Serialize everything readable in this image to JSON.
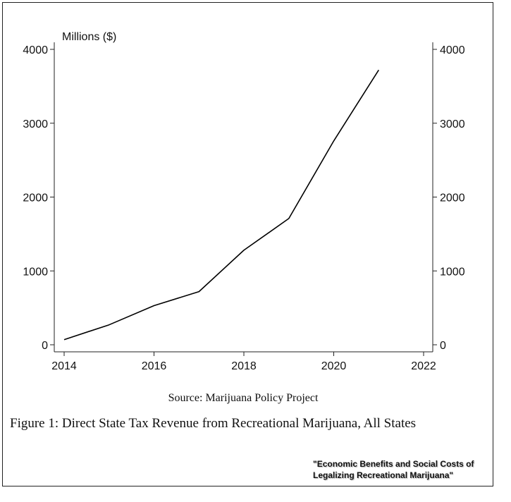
{
  "chart_data": {
    "type": "line",
    "title": "",
    "xlabel": "",
    "ylabel": "Millions ($)",
    "xlim": [
      2014,
      2022
    ],
    "ylim": [
      0,
      4000
    ],
    "xticks": [
      2014,
      2016,
      2018,
      2020,
      2022
    ],
    "yticks": [
      0,
      1000,
      2000,
      3000,
      4000
    ],
    "grid": false,
    "series": [
      {
        "x": [
          2014,
          2015,
          2016,
          2017,
          2018,
          2019,
          2020,
          2021
        ],
        "y": [
          70,
          270,
          530,
          720,
          1280,
          1710,
          2760,
          3720
        ]
      }
    ],
    "line_color": "#000000"
  },
  "source_text": "Source: Marijuana Policy Project",
  "caption": "Figure 1: Direct State Tax Revenue from Recreational Marijuana, All States",
  "citation_line1": "\"Economic Benefits and Social Costs of",
  "citation_line2": "Legalizing Recreational Marijuana\""
}
